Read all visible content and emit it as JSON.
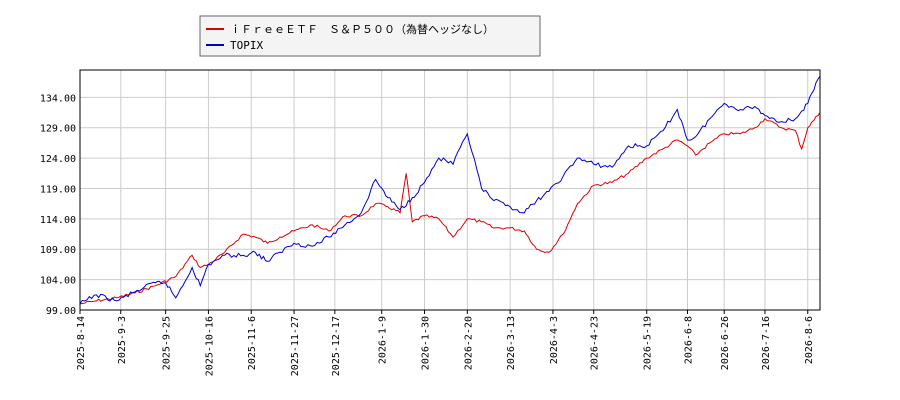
{
  "chart_data": {
    "type": "line",
    "title": "",
    "xlabel": "",
    "ylabel": "",
    "ylim": [
      99.0,
      138.5
    ],
    "y_ticks": [
      99.0,
      104.0,
      109.0,
      114.0,
      119.0,
      124.0,
      129.0,
      134.0
    ],
    "y_tick_labels": [
      "99.00",
      "104.00",
      "109.00",
      "114.00",
      "119.00",
      "124.00",
      "129.00",
      "134.00"
    ],
    "x_range": [
      "2025-08-14",
      "2026-08-12"
    ],
    "x_ticks": [
      "2025-8-14",
      "2025-9-3",
      "2025-9-25",
      "2025-10-16",
      "2025-11-6",
      "2025-11-27",
      "2025-12-17",
      "2026-1-9",
      "2026-1-30",
      "2026-2-20",
      "2026-3-13",
      "2026-4-3",
      "2026-4-23",
      "2026-5-19",
      "2026-6-8",
      "2026-6-26",
      "2026-7-16",
      "2026-8-6"
    ],
    "grid": true,
    "legend_position": "top-left",
    "series": [
      {
        "name": "ｉＦｒｅｅＥＴＦ　Ｓ＆Ｐ５００（為替ヘッジなし）",
        "color": "#dd0000",
        "x": [
          "2025-08-14",
          "2025-08-22",
          "2025-09-01",
          "2025-09-10",
          "2025-09-20",
          "2025-09-30",
          "2025-10-08",
          "2025-10-12",
          "2025-10-16",
          "2025-10-24",
          "2025-11-02",
          "2025-11-08",
          "2025-11-14",
          "2025-11-20",
          "2025-11-27",
          "2025-12-06",
          "2025-12-14",
          "2025-12-22",
          "2025-12-30",
          "2026-01-06",
          "2026-01-12",
          "2026-01-18",
          "2026-01-21",
          "2026-01-24",
          "2026-01-30",
          "2026-02-06",
          "2026-02-13",
          "2026-02-20",
          "2026-02-27",
          "2026-03-05",
          "2026-03-13",
          "2026-03-20",
          "2026-03-26",
          "2026-04-01",
          "2026-04-08",
          "2026-04-15",
          "2026-04-23",
          "2026-05-02",
          "2026-05-10",
          "2026-05-19",
          "2026-05-27",
          "2026-06-03",
          "2026-06-08",
          "2026-06-12",
          "2026-06-19",
          "2026-06-26",
          "2026-07-04",
          "2026-07-11",
          "2026-07-16",
          "2026-07-24",
          "2026-07-31",
          "2026-08-03",
          "2026-08-06",
          "2026-08-12"
        ],
        "values": [
          100.0,
          100.5,
          101.0,
          101.8,
          103.0,
          104.5,
          108.0,
          106.0,
          106.5,
          108.5,
          111.5,
          111.0,
          110.0,
          111.0,
          112.0,
          113.0,
          112.0,
          114.5,
          114.5,
          116.5,
          116.0,
          115.0,
          121.5,
          113.5,
          114.5,
          114.0,
          111.0,
          114.0,
          113.5,
          112.5,
          112.5,
          112.0,
          109.0,
          108.5,
          111.5,
          116.5,
          119.5,
          120.0,
          121.5,
          124.0,
          125.5,
          127.0,
          126.0,
          124.5,
          126.5,
          128.0,
          128.0,
          129.0,
          130.5,
          129.0,
          128.5,
          125.5,
          129.0,
          131.5
        ]
      },
      {
        "name": "TOPIX",
        "color": "#0000cc",
        "x": [
          "2025-08-14",
          "2025-08-22",
          "2025-09-01",
          "2025-09-10",
          "2025-09-20",
          "2025-09-25",
          "2025-09-30",
          "2025-10-08",
          "2025-10-12",
          "2025-10-16",
          "2025-10-24",
          "2025-11-02",
          "2025-11-08",
          "2025-11-14",
          "2025-11-20",
          "2025-11-27",
          "2025-12-06",
          "2025-12-14",
          "2025-12-22",
          "2025-12-30",
          "2026-01-06",
          "2026-01-12",
          "2026-01-18",
          "2026-01-24",
          "2026-01-30",
          "2026-02-06",
          "2026-02-13",
          "2026-02-20",
          "2026-02-27",
          "2026-03-05",
          "2026-03-13",
          "2026-03-20",
          "2026-03-26",
          "2026-04-01",
          "2026-04-08",
          "2026-04-15",
          "2026-04-23",
          "2026-05-02",
          "2026-05-10",
          "2026-05-19",
          "2026-05-27",
          "2026-06-03",
          "2026-06-08",
          "2026-06-12",
          "2026-06-19",
          "2026-06-26",
          "2026-07-04",
          "2026-07-11",
          "2026-07-16",
          "2026-07-24",
          "2026-07-31",
          "2026-08-06",
          "2026-08-12"
        ],
        "values": [
          100.0,
          101.5,
          100.5,
          102.0,
          103.5,
          103.5,
          101.0,
          106.0,
          103.0,
          106.5,
          108.0,
          108.0,
          108.5,
          107.0,
          108.5,
          110.0,
          109.5,
          111.0,
          113.0,
          115.0,
          120.5,
          117.5,
          115.5,
          117.5,
          120.0,
          124.0,
          123.0,
          128.0,
          119.0,
          117.0,
          116.0,
          115.0,
          117.0,
          118.5,
          121.0,
          124.0,
          123.0,
          122.5,
          126.0,
          126.0,
          128.5,
          132.0,
          127.0,
          127.5,
          130.5,
          133.0,
          132.0,
          132.5,
          131.0,
          130.0,
          130.5,
          133.0,
          137.5
        ]
      }
    ]
  }
}
